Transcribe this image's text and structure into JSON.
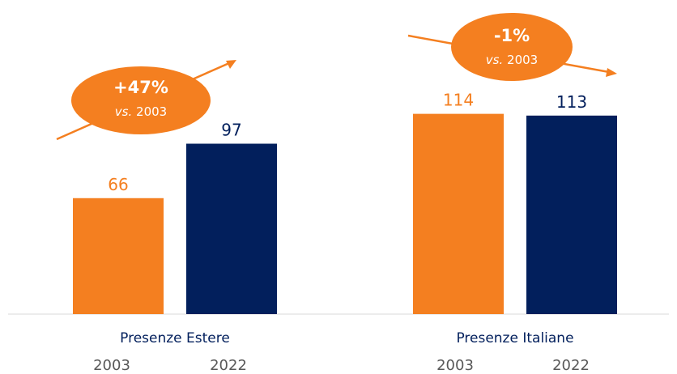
{
  "chart_data": {
    "type": "bar",
    "groups": [
      "Presenze Estere",
      "Presenze Italiane"
    ],
    "x_labels": [
      "2003",
      "2022"
    ],
    "series": [
      {
        "name": "2003",
        "values": [
          66,
          114
        ]
      },
      {
        "name": "2022",
        "values": [
          97,
          113
        ]
      }
    ],
    "value_labels": [
      [
        "66",
        "97"
      ],
      [
        "114",
        "113"
      ]
    ],
    "ylim": [
      0,
      165
    ],
    "grid": false,
    "annotations": [
      {
        "group": "Presenze Estere",
        "change": "+47%",
        "prefix": "vs.",
        "base": "2003",
        "trend": "up"
      },
      {
        "group": "Presenze Italiane",
        "change": "-1%",
        "prefix": "vs.",
        "base": "2003",
        "trend": "down"
      }
    ]
  },
  "colors": {
    "y2003": "#F47F20",
    "y2022": "#021F5C",
    "axis": "#D9D9D9",
    "year_label": "#595959",
    "bubble_text": "#ffffff"
  }
}
